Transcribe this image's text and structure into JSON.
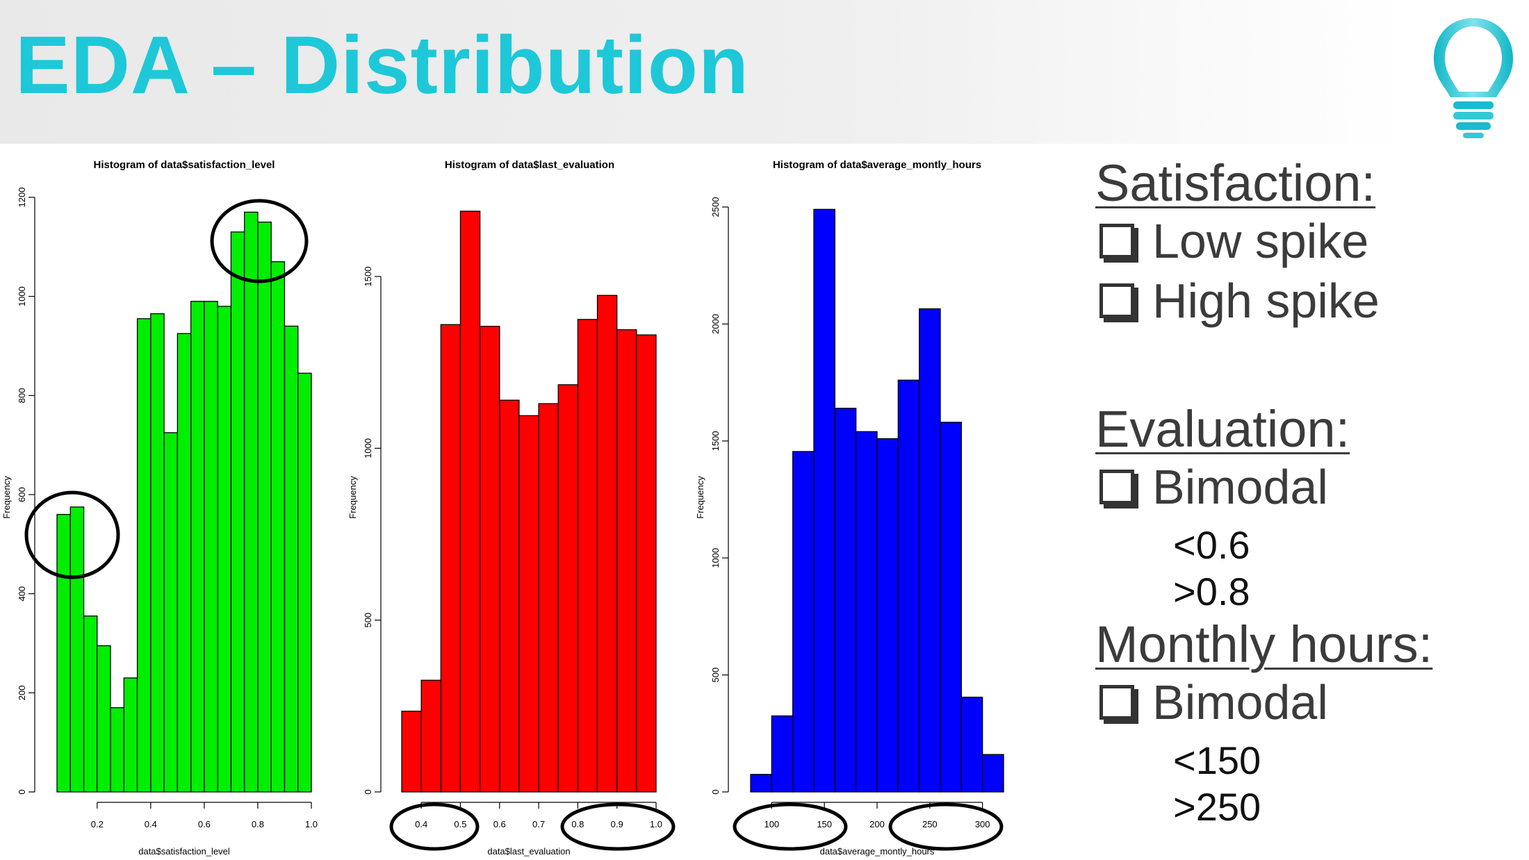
{
  "title": "EDA – Distribution",
  "logo_icon": "lightbulb-icon",
  "chart_data": [
    {
      "type": "bar",
      "title": "Histogram of data$satisfaction_level",
      "xlabel": "data$satisfaction_level",
      "ylabel": "Frequency",
      "color": "#00ee00",
      "bin_edges": [
        0.05,
        0.1,
        0.15,
        0.2,
        0.25,
        0.3,
        0.35,
        0.4,
        0.45,
        0.5,
        0.55,
        0.6,
        0.65,
        0.7,
        0.75,
        0.8,
        0.85,
        0.9,
        0.95,
        1.0
      ],
      "values": [
        560,
        575,
        355,
        295,
        170,
        230,
        955,
        965,
        725,
        925,
        990,
        990,
        980,
        1130,
        1170,
        1150,
        1070,
        940,
        845
      ],
      "xlim": [
        0.05,
        1.0
      ],
      "ylim": [
        0,
        1200
      ],
      "xticks": [
        "0.2",
        "0.4",
        "0.6",
        "0.8",
        "1.0"
      ],
      "xtick_values": [
        0.2,
        0.4,
        0.6,
        0.8,
        1.0
      ],
      "yticks": [
        "0",
        "200",
        "400",
        "600",
        "800",
        "1000",
        "1200"
      ],
      "ytick_values": [
        0,
        200,
        400,
        600,
        800,
        1000,
        1200
      ]
    },
    {
      "type": "bar",
      "title": "Histogram of data$last_evaluation",
      "xlabel": "data$last_evaluation",
      "ylabel": "Frequency",
      "color": "#ff0000",
      "bin_edges": [
        0.35,
        0.4,
        0.45,
        0.5,
        0.55,
        0.6,
        0.65,
        0.7,
        0.75,
        0.8,
        0.85,
        0.9,
        0.95,
        1.0
      ],
      "values": [
        235,
        325,
        1360,
        1690,
        1355,
        1140,
        1095,
        1130,
        1185,
        1375,
        1445,
        1345,
        1330
      ],
      "xlim": [
        0.35,
        1.0
      ],
      "ylim": [
        0,
        1500
      ],
      "xticks": [
        "0.4",
        "0.5",
        "0.6",
        "0.7",
        "0.8",
        "0.9",
        "1.0"
      ],
      "xtick_values": [
        0.4,
        0.5,
        0.6,
        0.7,
        0.8,
        0.9,
        1.0
      ],
      "yticks": [
        "0",
        "500",
        "1000",
        "1500"
      ],
      "ytick_values": [
        0,
        500,
        1000,
        1500
      ]
    },
    {
      "type": "bar",
      "title": "Histogram of data$average_montly_hours",
      "xlabel": "data$average_montly_hours",
      "ylabel": "Frequency",
      "color": "#0000ff",
      "bin_edges": [
        80,
        100,
        120,
        140,
        160,
        180,
        200,
        220,
        240,
        260,
        280,
        300,
        320
      ],
      "values": [
        75,
        325,
        1455,
        2490,
        1640,
        1540,
        1510,
        1760,
        2065,
        1580,
        405,
        160
      ],
      "xlim": [
        80,
        320
      ],
      "ylim": [
        0,
        2500
      ],
      "xticks": [
        "100",
        "150",
        "200",
        "250",
        "300"
      ],
      "xtick_values": [
        100,
        150,
        200,
        250,
        300
      ],
      "yticks": [
        "0",
        "500",
        "1000",
        "1500",
        "2000",
        "2500"
      ],
      "ytick_values": [
        0,
        500,
        1000,
        1500,
        2000,
        2500
      ]
    }
  ],
  "notes": {
    "satisfaction_heading": "Satisfaction:",
    "satisfaction_items": [
      "Low spike",
      "High spike"
    ],
    "evaluation_heading": "Evaluation:",
    "evaluation_item": "Bimodal",
    "evaluation_subs": [
      "<0.6",
      ">0.8"
    ],
    "hours_heading": "Monthly hours:",
    "hours_item": "Bimodal",
    "hours_subs": [
      "<150",
      ">250"
    ]
  },
  "colors": {
    "title": "#1ec8d8",
    "annotation_ellipse": "#000000"
  }
}
